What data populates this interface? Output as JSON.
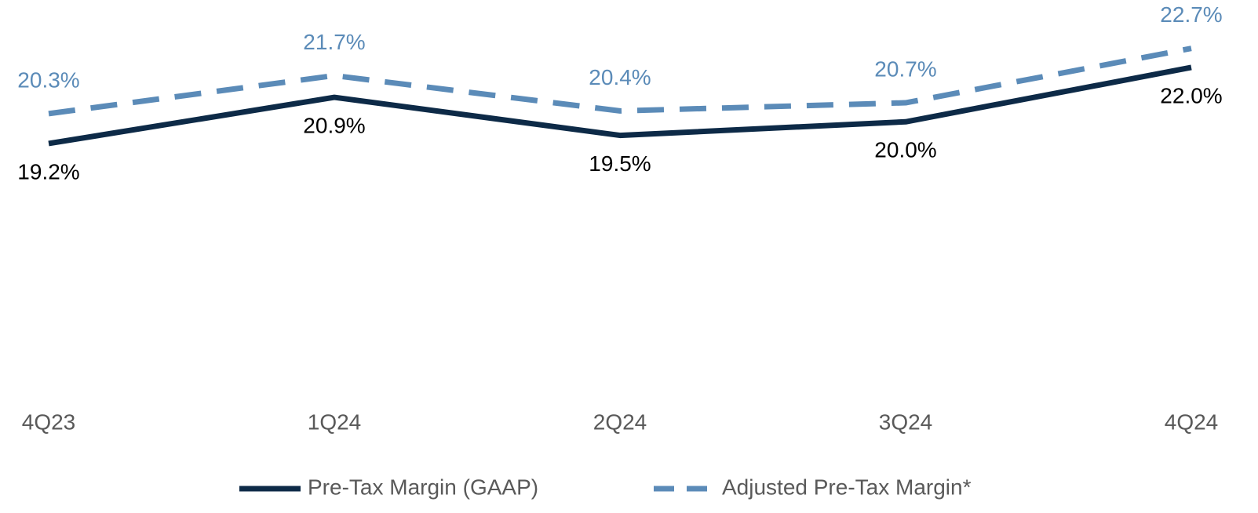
{
  "chart_data": {
    "type": "line",
    "categories": [
      "4Q23",
      "1Q24",
      "2Q24",
      "3Q24",
      "4Q24"
    ],
    "series": [
      {
        "name": "Pre-Tax Margin (GAAP)",
        "color": "#0d2a47",
        "dash": false,
        "label_position": "below",
        "values": [
          19.2,
          20.9,
          19.5,
          20.0,
          22.0
        ],
        "value_labels": [
          "19.2%",
          "20.9%",
          "19.5%",
          "20.0%",
          "22.0%"
        ]
      },
      {
        "name": "Adjusted Pre-Tax Margin*",
        "color": "#5b8bb8",
        "dash": true,
        "label_position": "above",
        "values": [
          20.3,
          21.7,
          20.4,
          20.7,
          22.7
        ],
        "value_labels": [
          "20.3%",
          "21.7%",
          "20.4%",
          "20.7%",
          "22.7%"
        ]
      }
    ],
    "ylim": [
      12,
      24
    ],
    "grid": false,
    "legend": "bottom"
  }
}
